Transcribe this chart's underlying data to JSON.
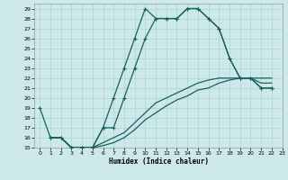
{
  "xlabel": "Humidex (Indice chaleur)",
  "xlim": [
    -0.5,
    23
  ],
  "ylim": [
    15,
    29.5
  ],
  "xticks": [
    0,
    1,
    2,
    3,
    4,
    5,
    6,
    7,
    8,
    9,
    10,
    11,
    12,
    13,
    14,
    15,
    16,
    17,
    18,
    19,
    20,
    21,
    22,
    23
  ],
  "yticks": [
    15,
    16,
    17,
    18,
    19,
    20,
    21,
    22,
    23,
    24,
    25,
    26,
    27,
    28,
    29
  ],
  "bg_color": "#cce8e8",
  "line_color": "#1a6060",
  "grid_color": "#aad4d4",
  "curve1_x": [
    0,
    1,
    2,
    3,
    4,
    5,
    6,
    7,
    8,
    9,
    10,
    11,
    12,
    13,
    14,
    15,
    16,
    17,
    18,
    19,
    20,
    21,
    22
  ],
  "curve1_y": [
    19,
    16,
    16,
    15,
    15,
    15,
    17,
    20,
    23,
    26,
    29,
    28,
    28,
    28,
    29,
    29,
    28,
    27,
    24,
    22,
    22,
    21,
    21
  ],
  "curve2_x": [
    1,
    2,
    3,
    4,
    5,
    6,
    7,
    8,
    9,
    10,
    11,
    12,
    13,
    14,
    15,
    16,
    17,
    18,
    19,
    20,
    21,
    22
  ],
  "curve2_y": [
    16,
    16,
    15,
    15,
    15,
    17,
    17,
    20,
    23,
    26,
    28,
    28,
    28,
    29,
    29,
    28,
    27,
    24,
    22,
    22,
    21,
    21
  ],
  "diag1_x": [
    1,
    2,
    3,
    4,
    5,
    6,
    7,
    8,
    9,
    10,
    11,
    12,
    13,
    14,
    15,
    16,
    17,
    18,
    19,
    20,
    21,
    22
  ],
  "diag1_y": [
    16,
    16,
    15,
    15,
    15,
    15.5,
    16,
    16.5,
    17.5,
    18.5,
    19.5,
    20,
    20.5,
    21,
    21.5,
    21.8,
    22,
    22,
    22,
    22,
    22,
    22
  ],
  "diag2_x": [
    1,
    2,
    3,
    4,
    5,
    6,
    7,
    8,
    9,
    10,
    11,
    12,
    13,
    14,
    15,
    16,
    17,
    18,
    19,
    20,
    21,
    22
  ],
  "diag2_y": [
    16,
    16,
    15,
    15,
    15,
    15.2,
    15.5,
    16,
    16.8,
    17.8,
    18.5,
    19.2,
    19.8,
    20.2,
    20.8,
    21,
    21.5,
    21.8,
    22,
    22,
    21.5,
    21.5
  ]
}
